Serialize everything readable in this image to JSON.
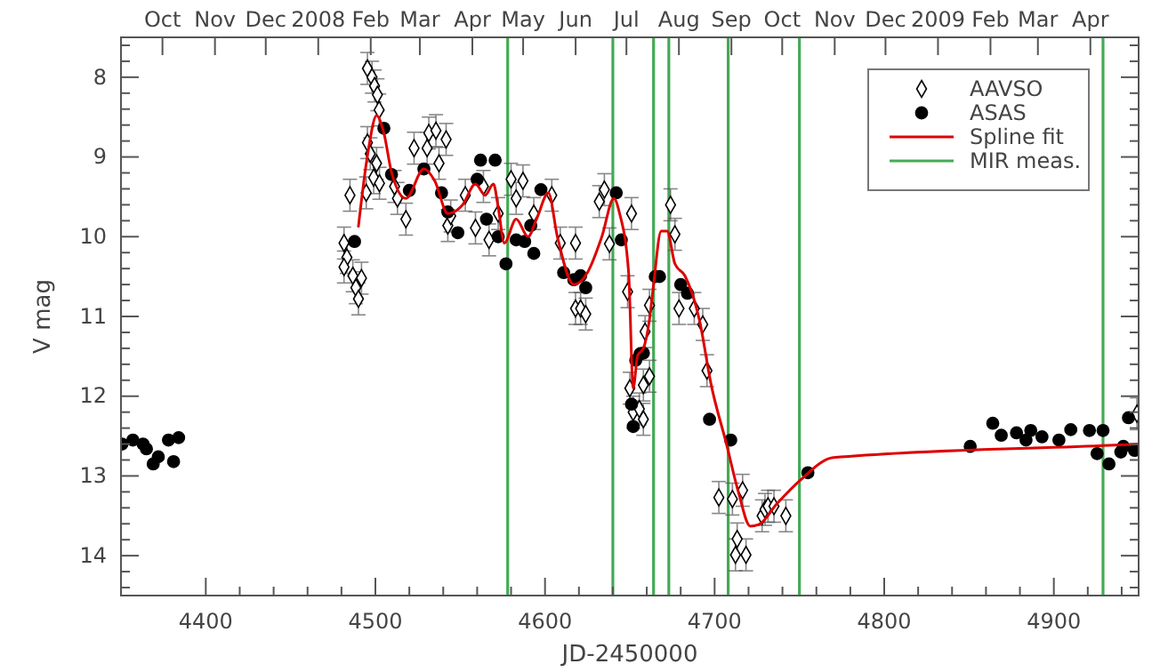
{
  "chart_data": {
    "type": "scatter",
    "xlabel": "JD-2450000",
    "ylabel": "V mag",
    "xlim": [
      4350,
      4950
    ],
    "ylim": [
      14.5,
      7.5
    ],
    "xticks": [
      4400,
      {
        "value": 4420,
        "label": null
      },
      {
        "value": 4440,
        "label": null
      },
      {
        "value": 4460,
        "label": null
      },
      {
        "value": 4480,
        "label": null
      },
      4500,
      {
        "value": 4520,
        "label": null
      },
      {
        "value": 4540,
        "label": null
      },
      {
        "value": 4560,
        "label": null
      },
      {
        "value": 4580,
        "label": null
      },
      4600,
      {
        "value": 4620,
        "label": null
      },
      {
        "value": 4640,
        "label": null
      },
      {
        "value": 4660,
        "label": null
      },
      {
        "value": 4680,
        "label": null
      },
      4700,
      {
        "value": 4720,
        "label": null
      },
      {
        "value": 4740,
        "label": null
      },
      {
        "value": 4760,
        "label": null
      },
      {
        "value": 4780,
        "label": null
      },
      4800,
      {
        "value": 4820,
        "label": null
      },
      {
        "value": 4840,
        "label": null
      },
      {
        "value": 4860,
        "label": null
      },
      {
        "value": 4880,
        "label": null
      },
      4900,
      {
        "value": 4920,
        "label": null
      },
      {
        "value": 4940,
        "label": null
      }
    ],
    "yticks": [
      {
        "value": 7.6,
        "label": null
      },
      {
        "value": 7.8,
        "label": null
      },
      8,
      {
        "value": 8.2,
        "label": null
      },
      {
        "value": 8.4,
        "label": null
      },
      {
        "value": 8.6,
        "label": null
      },
      {
        "value": 8.8,
        "label": null
      },
      9,
      {
        "value": 9.2,
        "label": null
      },
      {
        "value": 9.4,
        "label": null
      },
      {
        "value": 9.6,
        "label": null
      },
      {
        "value": 9.8,
        "label": null
      },
      10,
      {
        "value": 10.2,
        "label": null
      },
      {
        "value": 10.4,
        "label": null
      },
      {
        "value": 10.6,
        "label": null
      },
      {
        "value": 10.8,
        "label": null
      },
      11,
      {
        "value": 11.2,
        "label": null
      },
      {
        "value": 11.4,
        "label": null
      },
      {
        "value": 11.6,
        "label": null
      },
      {
        "value": 11.8,
        "label": null
      },
      12,
      {
        "value": 12.2,
        "label": null
      },
      {
        "value": 12.4,
        "label": null
      },
      {
        "value": 12.6,
        "label": null
      },
      {
        "value": 12.8,
        "label": null
      },
      13,
      {
        "value": 13.2,
        "label": null
      },
      {
        "value": 13.4,
        "label": null
      },
      {
        "value": 13.6,
        "label": null
      },
      {
        "value": 13.8,
        "label": null
      },
      14,
      {
        "value": 14.2,
        "label": null
      },
      {
        "value": 14.4,
        "label": null
      }
    ],
    "x2lim": [
      "2007-09-06T12:00",
      "2009-04-29T12:00"
    ],
    "x2ticks": [
      {
        "value": "2007-10-01",
        "label": "Oct"
      },
      {
        "value": "2007-11-01",
        "label": "Nov"
      },
      {
        "value": "2007-12-01",
        "label": "Dec"
      },
      {
        "value": "2008-01-01",
        "label": "2008"
      },
      {
        "value": "2008-02-01",
        "label": "Feb"
      },
      {
        "value": "2008-03-01",
        "label": "Mar"
      },
      {
        "value": "2008-04-01",
        "label": "Apr"
      },
      {
        "value": "2008-05-01",
        "label": "May"
      },
      {
        "value": "2008-06-01",
        "label": "Jun"
      },
      {
        "value": "2008-07-01",
        "label": "Jul"
      },
      {
        "value": "2008-08-01",
        "label": "Aug"
      },
      {
        "value": "2008-09-01",
        "label": "Sep"
      },
      {
        "value": "2008-10-01",
        "label": "Oct"
      },
      {
        "value": "2008-11-01",
        "label": "Nov"
      },
      {
        "value": "2008-12-01",
        "label": "Dec"
      },
      {
        "value": "2009-01-01",
        "label": "2009"
      },
      {
        "value": "2009-02-01",
        "label": "Feb"
      },
      {
        "value": "2009-03-01",
        "label": "Mar"
      },
      {
        "value": "2009-04-01",
        "label": "Apr"
      }
    ],
    "legend": "top right",
    "annotations": [
      "MIR meas."
    ],
    "ref_lines": [
      {
        "axis": "x",
        "value": 4578,
        "color": "#44aa55"
      },
      {
        "axis": "x",
        "value": 4640,
        "color": "#44aa55"
      },
      {
        "axis": "x",
        "value": 4664,
        "color": "#44aa55"
      },
      {
        "axis": "x",
        "value": 4673,
        "color": "#44aa55"
      },
      {
        "axis": "x",
        "value": 4708,
        "color": "#44aa55"
      },
      {
        "axis": "x",
        "value": 4750,
        "color": "#44aa55"
      },
      {
        "axis": "x",
        "value": 4929,
        "color": "#44aa55"
      }
    ],
    "series": [
      {
        "name": "AAVSO",
        "marker": "diamond",
        "color": "#000000",
        "x": [
          4481.5,
          4483.2,
          4481.5,
          4485,
          4486.7,
          4488.5,
          4490,
          4491.8,
          4494.6,
          4495.3,
          4495.3,
          4498,
          4499.5,
          4501.2,
          4502.2,
          4497,
          4499,
          4502.4,
          4500.7,
          4511.3,
          4513,
          4518,
          4522.8,
          4530.5,
          4531.5,
          4535.7,
          4537.5,
          4541.7,
          4542.7,
          4544.4,
          4553,
          4559,
          4563.7,
          4567,
          4572.4,
          4580,
          4583,
          4587,
          4593.4,
          4604,
          4609,
          4618,
          4618,
          4621,
          4624,
          4632,
          4635,
          4638,
          4651,
          4648.7,
          4650,
          4659,
          4661.6,
          4674,
          4676.6,
          4679,
          4688,
          4693,
          4695.5,
          4652,
          4655.6,
          4658,
          4658,
          4661.6,
          4702.5,
          4710.5,
          4716.5,
          4713.3,
          4712.3,
          4718.5,
          4728,
          4729.7,
          4731.5,
          4735,
          4742,
          4949
        ],
        "values": [
          10.08,
          10.26,
          10.38,
          9.48,
          10.49,
          10.64,
          10.78,
          10.52,
          9.45,
          8.82,
          7.89,
          8.0,
          8.11,
          8.22,
          8.41,
          8.96,
          9.26,
          9.33,
          9.08,
          9.37,
          9.52,
          9.78,
          8.89,
          8.89,
          8.7,
          8.67,
          9.08,
          8.78,
          9.86,
          9.74,
          9.48,
          9.89,
          9.37,
          10.04,
          9.71,
          9.28,
          9.52,
          9.3,
          9.71,
          9.48,
          10.08,
          10.08,
          10.9,
          10.9,
          10.97,
          9.56,
          9.41,
          10.09,
          9.71,
          10.69,
          11.9,
          11.19,
          10.86,
          9.6,
          9.97,
          10.9,
          10.9,
          11.1,
          11.68,
          12.2,
          12.16,
          12.29,
          11.86,
          11.75,
          13.27,
          13.29,
          13.18,
          13.79,
          13.99,
          13.99,
          13.5,
          13.42,
          13.38,
          13.38,
          13.5,
          12.22
        ],
        "errors": [
          0.2,
          0.2,
          0.2,
          0.2,
          0.2,
          0.2,
          0.2,
          0.2,
          0.2,
          0.2,
          0.2,
          0.2,
          0.2,
          0.2,
          0.2,
          0.2,
          0.2,
          0.2,
          0.2,
          0.2,
          0.2,
          0.2,
          0.2,
          0.2,
          0.2,
          0.2,
          0.2,
          0.2,
          0.2,
          0.2,
          0.2,
          0.2,
          0.2,
          0.2,
          0.2,
          0.2,
          0.2,
          0.2,
          0.2,
          0.2,
          0.2,
          0.2,
          0.2,
          0.2,
          0.2,
          0.2,
          0.2,
          0.2,
          0.2,
          0.2,
          0.2,
          0.2,
          0.2,
          0.2,
          0.2,
          0.2,
          0.2,
          0.2,
          0.2,
          0.2,
          0.2,
          0.2,
          0.2,
          0.2,
          0.2,
          0.2,
          0.2,
          0.2,
          0.2,
          0.2,
          0.2,
          0.2,
          0.2,
          0.2,
          0.2,
          0.2
        ]
      },
      {
        "name": "ASAS",
        "marker": "circle",
        "color": "#000000",
        "x": [
          4350.6,
          4357,
          4363,
          4365,
          4369,
          4372,
          4378,
          4381,
          4384,
          4487.7,
          4505,
          4509.5,
          4520,
          4528.6,
          4539,
          4542.7,
          4548.6,
          4560,
          4562,
          4565.5,
          4570.6,
          4572.4,
          4577,
          4583,
          4588,
          4591.6,
          4593.4,
          4597.6,
          4611,
          4617,
          4621,
          4624,
          4642,
          4645,
          4651,
          4652,
          4653.5,
          4656,
          4658,
          4665,
          4667.5,
          4680,
          4684,
          4697,
          4709.5,
          4755,
          4850.7,
          4864,
          4869,
          4878,
          4883.6,
          4886.4,
          4893,
          4903,
          4910,
          4921,
          4929,
          4925.5,
          4932.5,
          4939.5,
          4941,
          4944,
          4947.6
        ],
        "values": [
          12.6,
          12.55,
          12.6,
          12.66,
          12.85,
          12.76,
          12.55,
          12.82,
          12.52,
          10.06,
          8.64,
          9.22,
          9.42,
          9.15,
          9.45,
          9.69,
          9.95,
          9.28,
          9.04,
          9.78,
          9.04,
          10.0,
          10.34,
          10.04,
          10.06,
          9.86,
          10.21,
          9.41,
          10.45,
          10.54,
          10.49,
          10.64,
          9.45,
          10.04,
          12.1,
          12.38,
          11.55,
          11.47,
          11.46,
          10.5,
          10.5,
          10.6,
          10.71,
          12.29,
          12.55,
          12.96,
          12.63,
          12.34,
          12.49,
          12.46,
          12.55,
          12.43,
          12.51,
          12.55,
          12.42,
          12.43,
          12.43,
          12.72,
          12.85,
          12.7,
          12.63,
          12.27,
          12.68
        ]
      },
      {
        "name": "Spline fit",
        "type": "line",
        "marker": "none",
        "color": "#dd0000",
        "x": [
          4490,
          4495.5,
          4500.7,
          4505,
          4509.5,
          4518,
          4528.6,
          4535,
          4542.7,
          4551.4,
          4559,
          4564.7,
          4569.6,
          4572.4,
          4576,
          4583,
          4590,
          4595,
          4602,
          4607.3,
          4617,
          4625,
          4633.5,
          4640.6,
          4644,
          4649.3,
          4652,
          4654.6,
          4658,
          4661.6,
          4664,
          4668.5,
          4672,
          4676.6,
          4682.5,
          4691,
          4698,
          4707,
          4714,
          4721,
          4726,
          4736.7,
          4750.7,
          4770,
          4929,
          4950
        ],
        "values": [
          9.87,
          8.96,
          8.48,
          8.7,
          9.19,
          9.52,
          9.15,
          9.3,
          9.71,
          9.6,
          9.34,
          9.48,
          9.34,
          9.63,
          10.08,
          9.78,
          10.0,
          9.78,
          9.45,
          10.0,
          10.6,
          10.45,
          10.0,
          9.52,
          9.71,
          10.45,
          11.9,
          11.49,
          11.4,
          11.04,
          10.6,
          9.93,
          9.93,
          10.34,
          10.49,
          11.04,
          11.86,
          12.6,
          13.2,
          13.63,
          13.61,
          13.35,
          13.05,
          12.77,
          12.62,
          12.6
        ]
      }
    ]
  }
}
